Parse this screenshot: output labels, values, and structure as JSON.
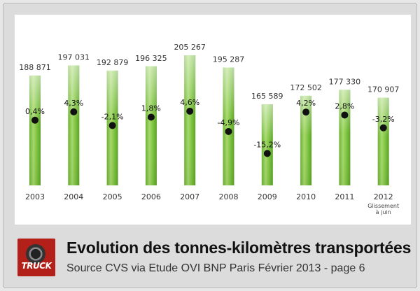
{
  "chart_data": {
    "type": "bar",
    "title": "Evolution des tonnes-kilomètres transportées",
    "subtitle": "Source CVS via Etude OVI BNP Paris Février 2013 - page 6",
    "categories": [
      "2003",
      "2004",
      "2005",
      "2006",
      "2007",
      "2008",
      "2009",
      "2010",
      "2011",
      "2012"
    ],
    "category_note": {
      "index": 9,
      "lines": [
        "Glissement",
        "à juin"
      ]
    },
    "value_labels": [
      "188 871",
      "197 031",
      "192 879",
      "196 325",
      "205 267",
      "195 287",
      "165 589",
      "172 502",
      "177 330",
      "170 907"
    ],
    "values": [
      188871,
      197031,
      192879,
      196325,
      205267,
      195287,
      165589,
      172502,
      177330,
      170907
    ],
    "series": [
      {
        "name": "",
        "values": [
          188871,
          197031,
          192879,
          196325,
          205267,
          195287,
          165589,
          172502,
          177330,
          170907
        ]
      },
      {
        "name": "",
        "kind": "dots",
        "values": [
          0.4,
          4.3,
          -2.1,
          1.8,
          4.6,
          -4.9,
          -15.2,
          4.2,
          2.8,
          -3.2
        ],
        "labels": [
          "0,4%",
          "4,3%",
          "-2,1%",
          "1,8%",
          "4,6%",
          "-4,9%",
          "-15,2%",
          "4,2%",
          "2,8%",
          "-3,2%"
        ]
      }
    ],
    "grid": false,
    "legend": "none",
    "colors": {
      "bar": "#7cc242",
      "bar_light": "#d6efb8",
      "dot": "#111111"
    }
  },
  "footer": {
    "title": "Evolution des tonnes-kilomètres transportées",
    "subtitle": "Source CVS via Etude OVI BNP Paris Février 2013 - page 6",
    "logo_text": "TRUCK"
  }
}
